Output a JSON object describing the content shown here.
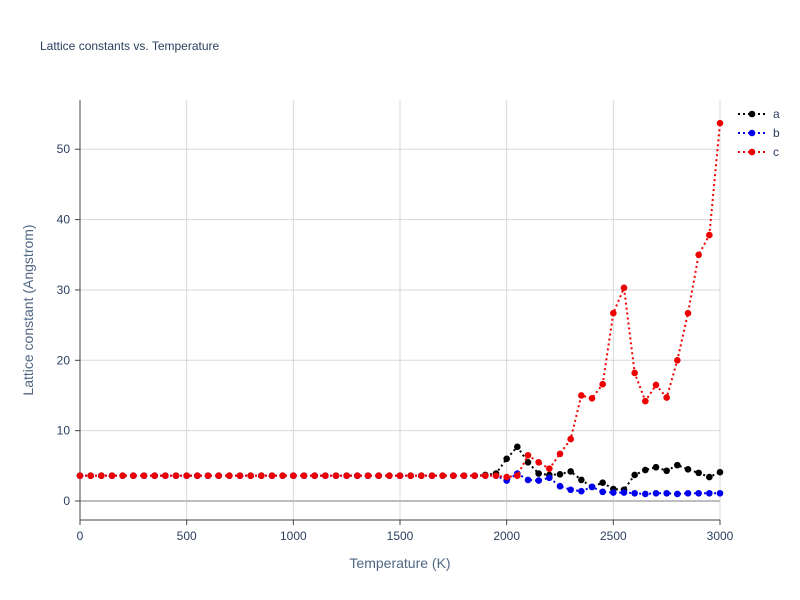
{
  "chart_data": {
    "type": "line",
    "title": "Lattice constants vs. Temperature",
    "xlabel": "Temperature (K)",
    "ylabel": "Lattice constant (Angstrom)",
    "xlim": [
      0,
      3000
    ],
    "ylim": [
      -2.7,
      57
    ],
    "x_ticks": [
      0,
      500,
      1000,
      1500,
      2000,
      2500,
      3000
    ],
    "y_ticks": [
      0,
      10,
      20,
      30,
      40,
      50
    ],
    "grid": true,
    "legend": "top-right",
    "x": [
      0,
      50,
      100,
      150,
      200,
      250,
      300,
      350,
      400,
      450,
      500,
      550,
      600,
      650,
      700,
      750,
      800,
      850,
      900,
      950,
      1000,
      1050,
      1100,
      1150,
      1200,
      1250,
      1300,
      1350,
      1400,
      1450,
      1500,
      1550,
      1600,
      1650,
      1700,
      1750,
      1800,
      1850,
      1900,
      1950,
      2000,
      2050,
      2100,
      2150,
      2200,
      2250,
      2300,
      2350,
      2400,
      2450,
      2500,
      2550,
      2600,
      2650,
      2700,
      2750,
      2800,
      2850,
      2900,
      2950,
      3000
    ],
    "series": [
      {
        "name": "a",
        "color": "#000000",
        "values": [
          3.6,
          3.6,
          3.6,
          3.6,
          3.6,
          3.6,
          3.6,
          3.6,
          3.6,
          3.6,
          3.6,
          3.6,
          3.6,
          3.6,
          3.6,
          3.6,
          3.6,
          3.6,
          3.6,
          3.6,
          3.6,
          3.6,
          3.6,
          3.6,
          3.6,
          3.6,
          3.6,
          3.6,
          3.6,
          3.6,
          3.6,
          3.6,
          3.6,
          3.6,
          3.6,
          3.6,
          3.6,
          3.6,
          3.7,
          3.9,
          6.0,
          7.7,
          5.5,
          3.9,
          3.7,
          3.8,
          4.2,
          3.0,
          2.0,
          2.6,
          1.7,
          1.6,
          3.7,
          4.4,
          4.8,
          4.3,
          5.1,
          4.5,
          4.0,
          3.4,
          4.1
        ]
      },
      {
        "name": "b",
        "color": "#0000ee",
        "values": [
          3.6,
          3.6,
          3.6,
          3.6,
          3.6,
          3.6,
          3.6,
          3.6,
          3.6,
          3.6,
          3.6,
          3.6,
          3.6,
          3.6,
          3.6,
          3.6,
          3.6,
          3.6,
          3.6,
          3.6,
          3.6,
          3.6,
          3.6,
          3.6,
          3.6,
          3.6,
          3.6,
          3.6,
          3.6,
          3.6,
          3.6,
          3.6,
          3.6,
          3.6,
          3.6,
          3.6,
          3.6,
          3.6,
          3.6,
          3.6,
          2.9,
          3.9,
          3.0,
          2.9,
          3.3,
          2.1,
          1.6,
          1.4,
          2.0,
          1.3,
          1.2,
          1.2,
          1.1,
          1.0,
          1.1,
          1.1,
          1.0,
          1.1,
          1.1,
          1.1,
          1.1
        ]
      },
      {
        "name": "c",
        "color": "#ee0000",
        "values": [
          3.6,
          3.6,
          3.6,
          3.6,
          3.6,
          3.6,
          3.6,
          3.6,
          3.6,
          3.6,
          3.6,
          3.6,
          3.6,
          3.6,
          3.6,
          3.6,
          3.6,
          3.6,
          3.6,
          3.6,
          3.6,
          3.6,
          3.6,
          3.6,
          3.6,
          3.6,
          3.6,
          3.6,
          3.6,
          3.6,
          3.6,
          3.6,
          3.6,
          3.6,
          3.6,
          3.6,
          3.6,
          3.6,
          3.6,
          3.6,
          3.4,
          3.6,
          6.5,
          5.5,
          4.6,
          6.7,
          8.8,
          15.0,
          14.6,
          16.6,
          26.7,
          30.3,
          18.2,
          14.2,
          16.5,
          14.7,
          20.0,
          26.7,
          35.0,
          37.8,
          53.7
        ]
      }
    ]
  }
}
